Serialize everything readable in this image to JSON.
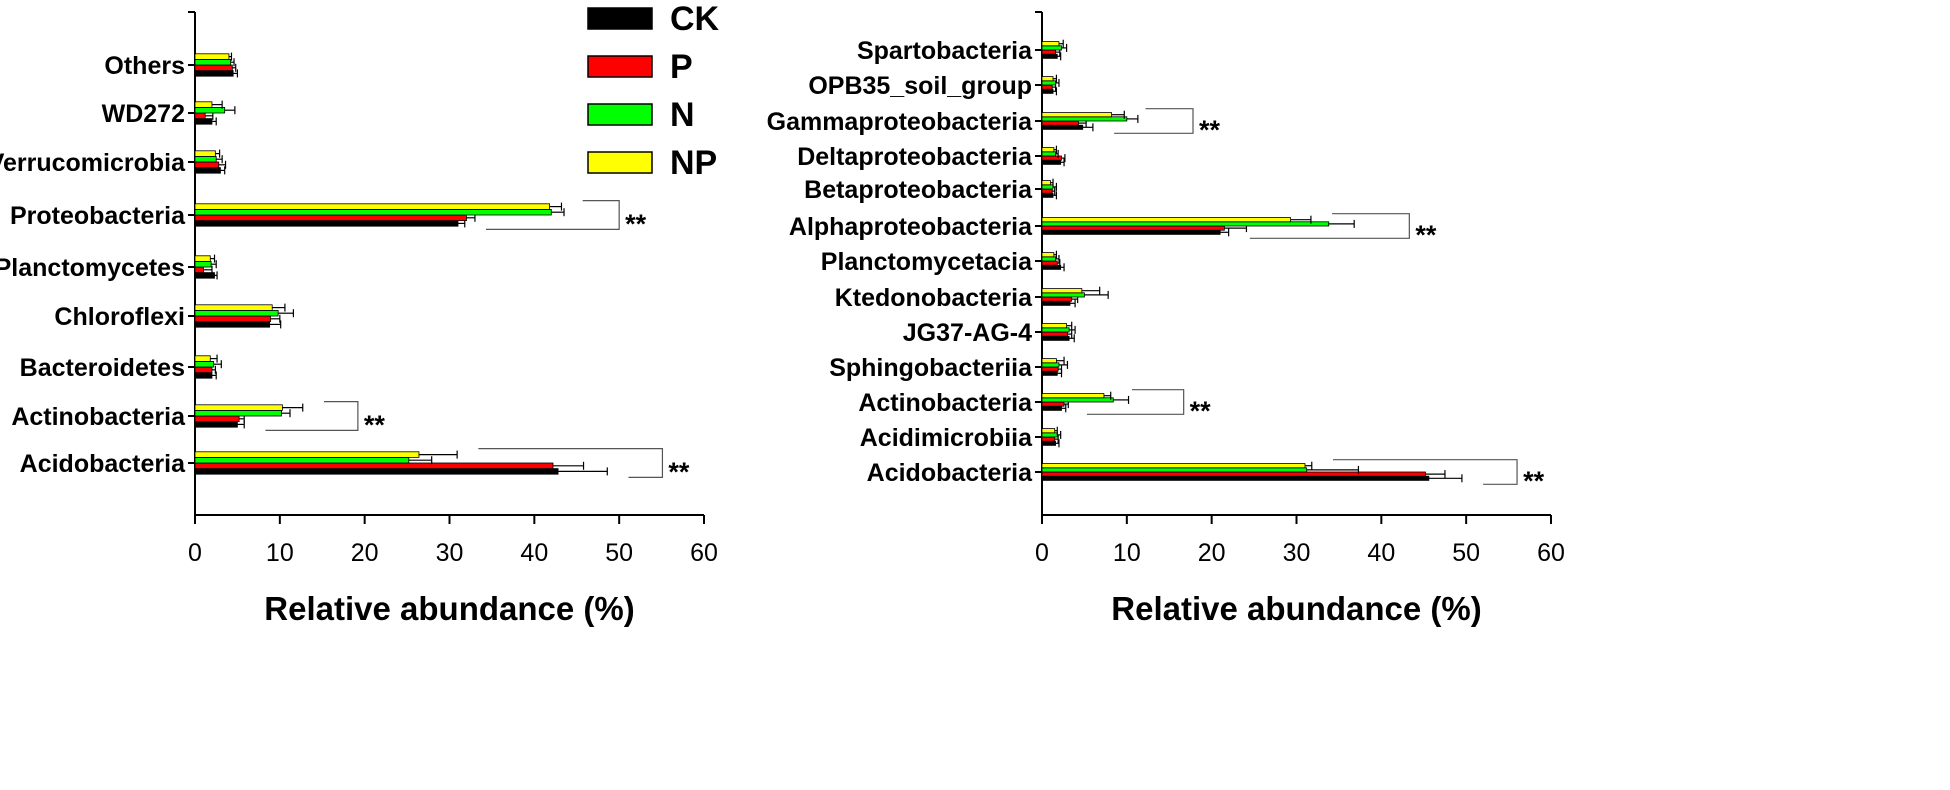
{
  "legend": {
    "entries": [
      {
        "name": "CK",
        "color": "#000000"
      },
      {
        "name": "P",
        "color": "#ff0000"
      },
      {
        "name": "N",
        "color": "#00ff00"
      },
      {
        "name": "NP",
        "color": "#ffff00"
      }
    ]
  },
  "chart_data": [
    {
      "type": "bar",
      "orientation": "horizontal",
      "title": "",
      "xlabel": "Relative abundance (%)",
      "ylabel": "",
      "xlim": [
        0,
        60
      ],
      "xticks": [
        0,
        10,
        20,
        30,
        40,
        50,
        60
      ],
      "categories": [
        "Others",
        "WD272",
        "Verrucomicrobia",
        "Proteobacteria",
        "Planctomycetes",
        "Chloroflexi",
        "Bacteroidetes",
        "Actinobacteria",
        "Acidobacteria"
      ],
      "series": [
        {
          "name": "CK",
          "values": [
            4.5,
            2.0,
            3.0,
            31.0,
            2.3,
            8.8,
            2.0,
            5.0,
            42.8
          ],
          "errors": [
            0.5,
            0.5,
            0.5,
            0.8,
            0.3,
            1.3,
            0.5,
            0.8,
            5.8
          ]
        },
        {
          "name": "P",
          "values": [
            4.4,
            1.2,
            2.8,
            32.0,
            1.0,
            8.9,
            2.0,
            5.2,
            42.2
          ],
          "errors": [
            0.4,
            0.9,
            0.8,
            1.0,
            1.0,
            1.1,
            0.4,
            0.6,
            3.6
          ]
        },
        {
          "name": "N",
          "values": [
            4.2,
            3.5,
            2.5,
            42.0,
            1.9,
            9.8,
            2.2,
            10.2,
            25.2
          ],
          "errors": [
            0.4,
            1.2,
            0.7,
            1.5,
            0.6,
            1.8,
            0.9,
            1.0,
            2.7
          ]
        },
        {
          "name": "NP",
          "values": [
            4.0,
            2.0,
            2.4,
            41.8,
            1.8,
            9.1,
            1.8,
            10.3,
            26.4
          ],
          "errors": [
            0.3,
            1.2,
            0.5,
            1.4,
            0.5,
            1.5,
            0.8,
            2.4,
            4.5
          ]
        }
      ],
      "significance": [
        {
          "category": "Proteobacteria",
          "label": "**"
        },
        {
          "category": "Actinobacteria",
          "label": "**"
        },
        {
          "category": "Acidobacteria",
          "label": "**"
        }
      ]
    },
    {
      "type": "bar",
      "orientation": "horizontal",
      "title": "",
      "xlabel": "Relative abundance (%)",
      "ylabel": "",
      "xlim": [
        0,
        60
      ],
      "xticks": [
        0,
        10,
        20,
        30,
        40,
        50,
        60
      ],
      "categories": [
        "Spartobacteria",
        "OPB35_soil_group",
        "Gammaproteobacteria",
        "Deltaproteobacteria",
        "Betaproteobacteria",
        "Alphaproteobacteria",
        "Planctomycetacia",
        "Ktedonobacteria",
        "JG37-AG-4",
        "Sphingobacteriia",
        "Actinobacteria",
        "Acidimicrobiia",
        "Acidobacteria"
      ],
      "series": [
        {
          "name": "CK",
          "values": [
            1.8,
            1.3,
            4.8,
            2.2,
            1.3,
            21.0,
            2.2,
            3.3,
            3.2,
            1.8,
            2.3,
            1.6,
            45.6
          ],
          "errors": [
            0.4,
            0.4,
            1.2,
            0.4,
            0.4,
            1.0,
            0.4,
            0.6,
            0.6,
            0.5,
            0.5,
            0.4,
            3.9
          ]
        },
        {
          "name": "P",
          "values": [
            1.6,
            1.2,
            4.3,
            2.3,
            1.2,
            21.5,
            1.8,
            3.5,
            3.0,
            1.9,
            2.6,
            1.5,
            45.2
          ],
          "errors": [
            0.5,
            0.4,
            0.9,
            0.4,
            0.3,
            2.6,
            0.3,
            0.7,
            0.5,
            0.4,
            0.5,
            0.4,
            2.3
          ]
        },
        {
          "name": "N",
          "values": [
            2.3,
            1.6,
            10.0,
            1.6,
            1.3,
            33.8,
            1.6,
            5.0,
            3.2,
            2.0,
            8.4,
            1.8,
            31.2
          ],
          "errors": [
            0.6,
            0.4,
            1.3,
            0.3,
            0.4,
            3.0,
            0.4,
            2.8,
            0.7,
            1.0,
            1.8,
            0.4,
            6.1
          ]
        },
        {
          "name": "NP",
          "values": [
            2.0,
            1.3,
            8.2,
            1.4,
            1.0,
            29.3,
            1.4,
            4.7,
            2.9,
            1.7,
            7.3,
            1.5,
            31.0
          ],
          "errors": [
            0.5,
            0.4,
            1.5,
            0.3,
            0.3,
            2.4,
            0.3,
            2.1,
            0.6,
            0.9,
            0.8,
            0.3,
            0.8
          ]
        }
      ],
      "significance": [
        {
          "category": "Gammaproteobacteria",
          "label": "**"
        },
        {
          "category": "Alphaproteobacteria",
          "label": "**"
        },
        {
          "category": "Actinobacteria",
          "label": "**"
        },
        {
          "category": "Acidobacteria",
          "label": "**"
        }
      ]
    }
  ]
}
